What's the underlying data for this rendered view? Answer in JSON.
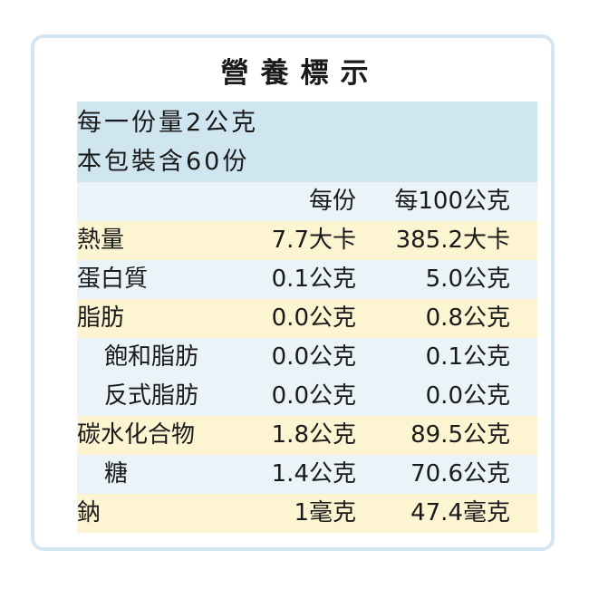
{
  "label": {
    "title": "營養標示",
    "serving_size": "每一份量2公克",
    "servings_per_package": "本包裝含60份"
  },
  "columns": {
    "per_serving": "每份",
    "per_100g": "每100公克"
  },
  "nutrients": [
    {
      "name": "熱量",
      "per_serving": "7.7大卡",
      "per_100g": "385.2大卡"
    },
    {
      "name": "蛋白質",
      "per_serving": "0.1公克",
      "per_100g": "5.0公克"
    },
    {
      "name": "脂肪",
      "per_serving": "0.0公克",
      "per_100g": "0.8公克"
    },
    {
      "name": "飽和脂肪",
      "per_serving": "0.0公克",
      "per_100g": "0.1公克"
    },
    {
      "name": "反式脂肪",
      "per_serving": "0.0公克",
      "per_100g": "0.0公克"
    },
    {
      "name": "碳水化合物",
      "per_serving": "1.8公克",
      "per_100g": "89.5公克"
    },
    {
      "name": "糖",
      "per_serving": "1.4公克",
      "per_100g": "70.6公克"
    },
    {
      "name": "鈉",
      "per_serving": "1毫克",
      "per_100g": "47.4毫克"
    }
  ],
  "colors": {
    "frame_border": "#d3e6f1",
    "serving_band": "#cfe5f0",
    "row_blue": "#e9f3f8",
    "row_cream": "#fdf5d2"
  }
}
